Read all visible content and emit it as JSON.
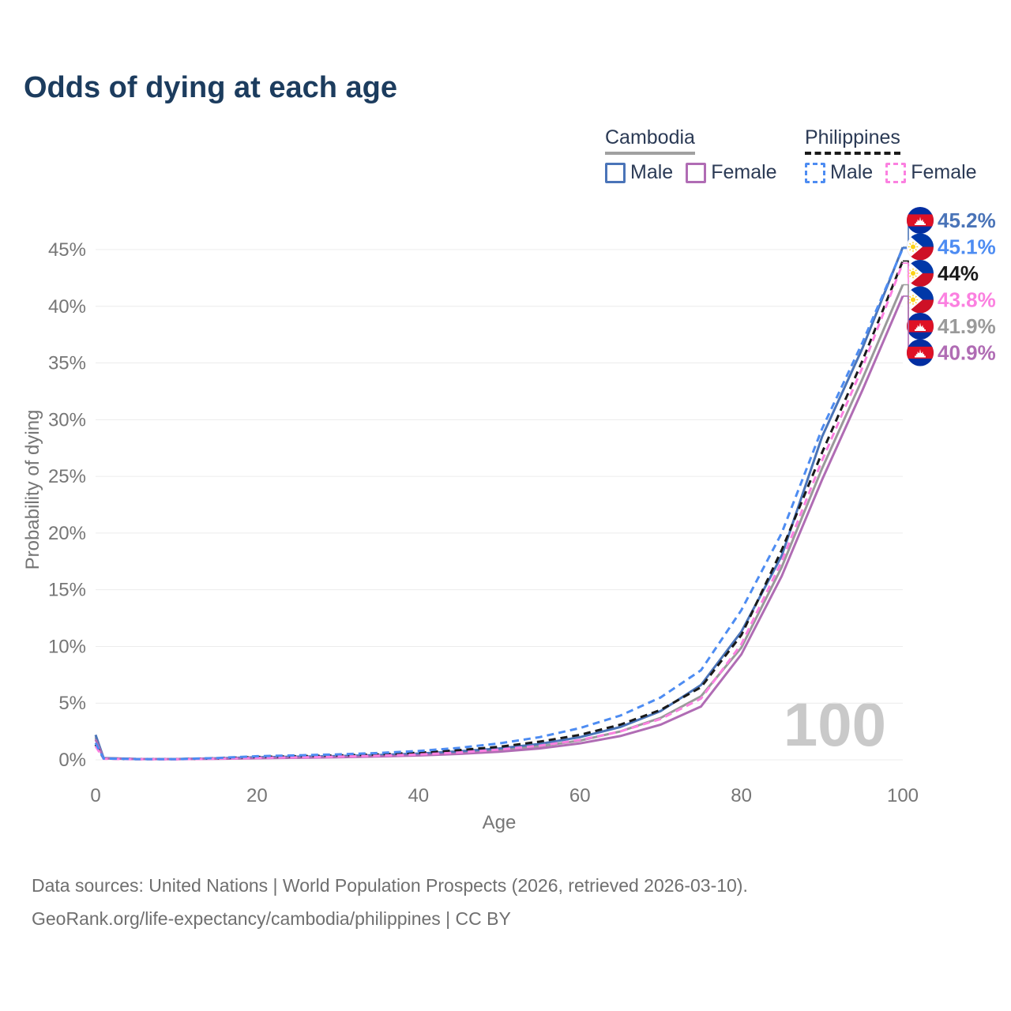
{
  "title": "Odds of dying at each age",
  "watermark": "100",
  "legend": {
    "groups": [
      {
        "label": "Cambodia",
        "line_color": "#a0a0a0",
        "line_style": "solid",
        "items": [
          {
            "label": "Male",
            "color": "#4a74b8",
            "dashed": false
          },
          {
            "label": "Female",
            "color": "#b06cb4",
            "dashed": false
          }
        ]
      },
      {
        "label": "Philippines",
        "line_color": "#1a1a1a",
        "line_style": "dashed",
        "items": [
          {
            "label": "Male",
            "color": "#4d8cf2",
            "dashed": true
          },
          {
            "label": "Female",
            "color": "#fb80e0",
            "dashed": true
          }
        ]
      }
    ]
  },
  "chart_data": {
    "type": "line",
    "title": "Odds of dying at each age",
    "xlabel": "Age",
    "ylabel": "Probability of dying",
    "xlim": [
      0,
      100
    ],
    "ylim": [
      0,
      47
    ],
    "grid": "horizontal",
    "x_ticks": [
      "0",
      "20",
      "40",
      "60",
      "80",
      "100"
    ],
    "y_ticks": [
      "0%",
      "5%",
      "10%",
      "15%",
      "20%",
      "25%",
      "30%",
      "35%",
      "40%",
      "45%"
    ],
    "ages": [
      0,
      1,
      5,
      10,
      15,
      20,
      25,
      30,
      35,
      40,
      45,
      50,
      55,
      60,
      65,
      70,
      75,
      80,
      85,
      90,
      95,
      100
    ],
    "series": [
      {
        "name": "Cambodia Male",
        "country": "Cambodia",
        "sex": "Male",
        "color": "#4a74b8",
        "dashed": false,
        "flag": "kh",
        "end_label": "45.2%",
        "values": [
          2.2,
          0.15,
          0.08,
          0.07,
          0.13,
          0.22,
          0.28,
          0.33,
          0.42,
          0.55,
          0.75,
          1.0,
          1.4,
          2.0,
          2.9,
          4.3,
          6.6,
          11.3,
          18.0,
          28.5,
          36.3,
          45.2
        ]
      },
      {
        "name": "Philippines Male",
        "country": "Philippines",
        "sex": "Male",
        "color": "#4d8cf2",
        "dashed": true,
        "flag": "ph",
        "end_label": "45.1%",
        "values": [
          1.5,
          0.12,
          0.06,
          0.06,
          0.16,
          0.32,
          0.4,
          0.48,
          0.6,
          0.78,
          1.05,
          1.45,
          2.0,
          2.8,
          3.9,
          5.5,
          7.9,
          13.2,
          20.0,
          29.2,
          36.8,
          45.1
        ]
      },
      {
        "name": "Philippines Combined",
        "country": "Philippines",
        "sex": "Combined",
        "color": "#1a1a1a",
        "dashed": true,
        "flag": "ph",
        "end_label": "44%",
        "values": [
          1.35,
          0.11,
          0.06,
          0.06,
          0.13,
          0.25,
          0.32,
          0.38,
          0.48,
          0.62,
          0.85,
          1.15,
          1.6,
          2.2,
          3.1,
          4.4,
          6.4,
          11.0,
          18.5,
          27.1,
          35.2,
          44.0
        ]
      },
      {
        "name": "Philippines Female",
        "country": "Philippines",
        "sex": "Female",
        "color": "#fb80e0",
        "dashed": true,
        "flag": "ph",
        "end_label": "43.8%",
        "values": [
          1.2,
          0.1,
          0.05,
          0.05,
          0.1,
          0.17,
          0.22,
          0.28,
          0.36,
          0.47,
          0.65,
          0.9,
          1.25,
          1.75,
          2.5,
          3.6,
          5.4,
          10.2,
          17.5,
          26.4,
          34.6,
          43.8
        ]
      },
      {
        "name": "Cambodia Combined",
        "country": "Cambodia",
        "sex": "Combined",
        "color": "#9a9a9a",
        "dashed": false,
        "flag": "kh",
        "end_label": "41.9%",
        "values": [
          2.0,
          0.14,
          0.07,
          0.07,
          0.11,
          0.18,
          0.23,
          0.28,
          0.35,
          0.46,
          0.62,
          0.85,
          1.2,
          1.7,
          2.5,
          3.7,
          5.6,
          9.9,
          17.0,
          25.7,
          33.6,
          41.9
        ]
      },
      {
        "name": "Cambodia Female",
        "country": "Cambodia",
        "sex": "Female",
        "color": "#b06cb4",
        "dashed": false,
        "flag": "kh",
        "end_label": "40.9%",
        "values": [
          1.8,
          0.13,
          0.07,
          0.06,
          0.09,
          0.14,
          0.18,
          0.23,
          0.29,
          0.38,
          0.52,
          0.72,
          1.0,
          1.45,
          2.1,
          3.1,
          4.7,
          9.3,
          16.2,
          24.7,
          32.6,
          40.9
        ]
      }
    ],
    "legend_position": "top-right",
    "watermark_age": "100"
  },
  "footer": {
    "line1": "Data sources: United Nations | World Population Prospects (2026, retrieved 2026-03-10).",
    "line2": "GeoRank.org/life-expectancy/cambodia/philippines | CC BY"
  }
}
